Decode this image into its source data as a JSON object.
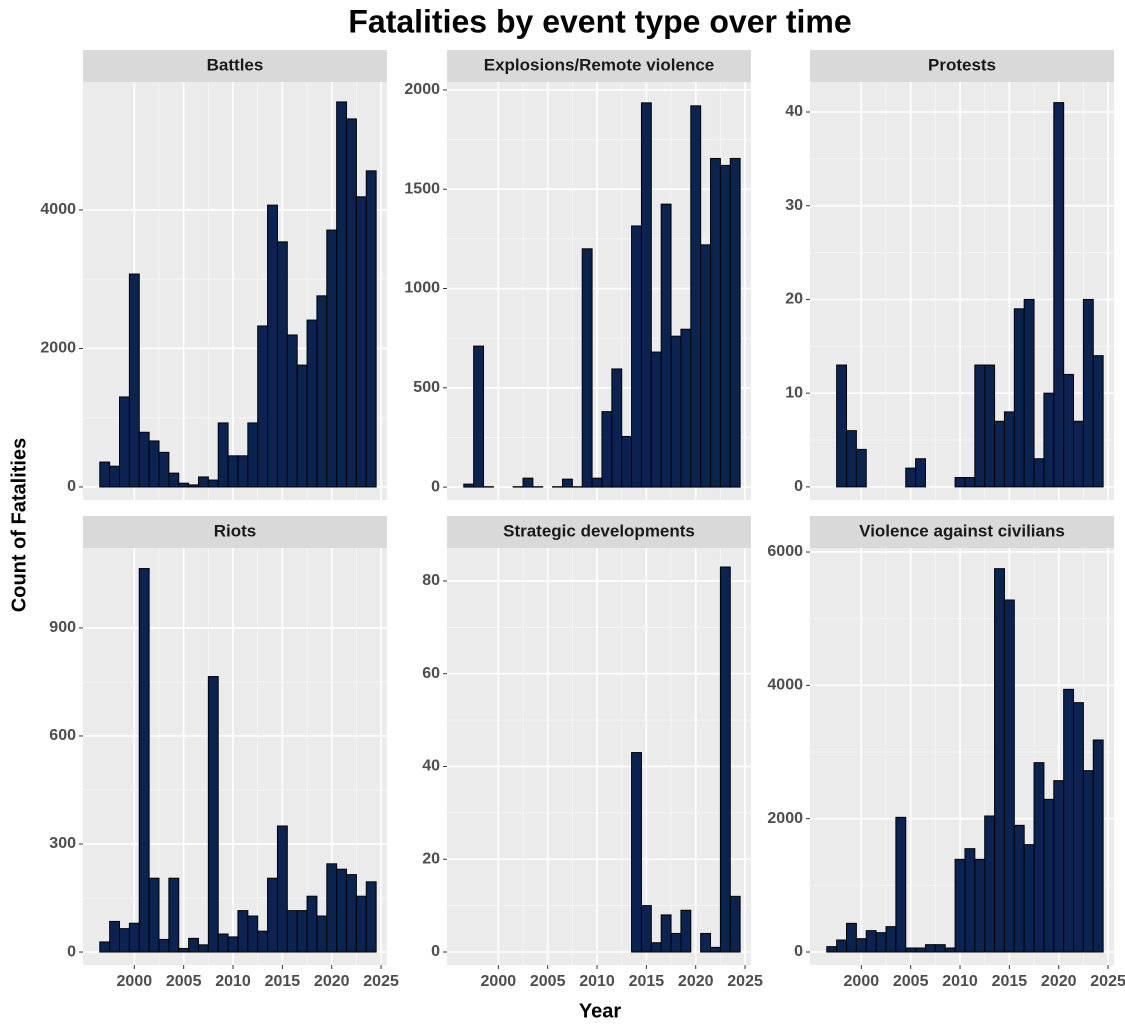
{
  "title": "Fatalities by event type over time",
  "x_label": "Year",
  "y_label": "Count of Fatalities",
  "chart_data": [
    {
      "type": "bar",
      "title": "Battles",
      "color": "#0b2350",
      "x": [
        1997,
        1998,
        1999,
        2000,
        2001,
        2002,
        2003,
        2004,
        2005,
        2006,
        2007,
        2008,
        2009,
        2010,
        2011,
        2012,
        2013,
        2014,
        2015,
        2016,
        2017,
        2018,
        2019,
        2020,
        2021,
        2022,
        2023,
        2024
      ],
      "values": [
        360,
        300,
        1300,
        3075,
        790,
        665,
        500,
        200,
        55,
        30,
        145,
        100,
        925,
        450,
        450,
        925,
        2325,
        4070,
        3540,
        2195,
        1760,
        2410,
        2760,
        3710,
        5560,
        5315,
        4190,
        4565
      ],
      "xlim": [
        1994.8,
        2025.6
      ],
      "xticks": [
        2000,
        2005,
        2010,
        2015,
        2020,
        2025
      ],
      "ylim": [
        -188,
        5848
      ],
      "yticks": [
        0,
        2000,
        4000
      ],
      "grid": true
    },
    {
      "type": "bar",
      "title": "Explosions/Remote violence",
      "color": "#0b2350",
      "x": [
        1997,
        1998,
        1999,
        2000,
        2001,
        2002,
        2003,
        2004,
        2005,
        2006,
        2007,
        2008,
        2009,
        2010,
        2011,
        2012,
        2013,
        2014,
        2015,
        2016,
        2017,
        2018,
        2019,
        2020,
        2021,
        2022,
        2023,
        2024
      ],
      "values": [
        15,
        710,
        2,
        null,
        null,
        2,
        45,
        2,
        null,
        2,
        40,
        2,
        1200,
        45,
        380,
        595,
        255,
        1315,
        1935,
        680,
        1425,
        760,
        795,
        1920,
        1220,
        1655,
        1620,
        1655
      ],
      "xlim": [
        1994.8,
        2025.6
      ],
      "xticks": [
        2000,
        2005,
        2010,
        2015,
        2020,
        2025
      ],
      "ylim": [
        -65,
        2040
      ],
      "yticks": [
        0,
        500,
        1000,
        1500,
        2000
      ],
      "grid": true
    },
    {
      "type": "bar",
      "title": "Protests",
      "color": "#0b2350",
      "x": [
        1997,
        1998,
        1999,
        2000,
        2001,
        2002,
        2003,
        2004,
        2005,
        2006,
        2007,
        2008,
        2009,
        2010,
        2011,
        2012,
        2013,
        2014,
        2015,
        2016,
        2017,
        2018,
        2019,
        2020,
        2021,
        2022,
        2023,
        2024
      ],
      "values": [
        0,
        13,
        6,
        4,
        0,
        null,
        0,
        0,
        2,
        3,
        0,
        0,
        0,
        1,
        1,
        13,
        13,
        7,
        8,
        19,
        20,
        3,
        10,
        41,
        12,
        7,
        20,
        14
      ],
      "xlim": [
        1994.8,
        2025.6
      ],
      "xticks": [
        2000,
        2005,
        2010,
        2015,
        2020,
        2025
      ],
      "ylim": [
        -1.4,
        43.2
      ],
      "yticks": [
        0,
        10,
        20,
        30,
        40
      ],
      "grid": true
    },
    {
      "type": "bar",
      "title": "Riots",
      "color": "#0b2350",
      "x": [
        1997,
        1998,
        1999,
        2000,
        2001,
        2002,
        2003,
        2004,
        2005,
        2006,
        2007,
        2008,
        2009,
        2010,
        2011,
        2012,
        2013,
        2014,
        2015,
        2016,
        2017,
        2018,
        2019,
        2020,
        2021,
        2022,
        2023,
        2024
      ],
      "values": [
        28,
        85,
        65,
        80,
        1065,
        205,
        35,
        205,
        10,
        38,
        20,
        765,
        50,
        42,
        115,
        100,
        58,
        205,
        350,
        115,
        115,
        155,
        100,
        245,
        230,
        215,
        155,
        195
      ],
      "xlim": [
        1994.8,
        2025.6
      ],
      "xticks": [
        2000,
        2005,
        2010,
        2015,
        2020,
        2025
      ],
      "ylim": [
        -36,
        1122
      ],
      "yticks": [
        0,
        300,
        600,
        900
      ],
      "grid": true
    },
    {
      "type": "bar",
      "title": "Strategic developments",
      "color": "#0b2350",
      "x": [
        1997,
        1998,
        1999,
        2000,
        2001,
        2002,
        2003,
        2004,
        2005,
        2006,
        2007,
        2008,
        2009,
        2010,
        2011,
        2012,
        2013,
        2014,
        2015,
        2016,
        2017,
        2018,
        2019,
        2020,
        2021,
        2022,
        2023,
        2024
      ],
      "values": [
        0,
        0,
        0,
        0,
        null,
        null,
        0,
        0,
        null,
        null,
        0,
        0,
        0,
        0,
        0,
        0,
        0,
        43,
        10,
        2,
        8,
        4,
        9,
        0,
        4,
        1,
        83,
        12
      ],
      "xlim": [
        1994.8,
        2025.6
      ],
      "xticks": [
        2000,
        2005,
        2010,
        2015,
        2020,
        2025
      ],
      "ylim": [
        -2.8,
        87.1
      ],
      "yticks": [
        0,
        20,
        40,
        60,
        80
      ],
      "grid": true
    },
    {
      "type": "bar",
      "title": "Violence against civilians",
      "color": "#0b2350",
      "x": [
        1997,
        1998,
        1999,
        2000,
        2001,
        2002,
        2003,
        2004,
        2005,
        2006,
        2007,
        2008,
        2009,
        2010,
        2011,
        2012,
        2013,
        2014,
        2015,
        2016,
        2017,
        2018,
        2019,
        2020,
        2021,
        2022,
        2023,
        2024
      ],
      "values": [
        80,
        180,
        430,
        200,
        320,
        290,
        380,
        2020,
        60,
        60,
        110,
        110,
        60,
        1390,
        1550,
        1390,
        2040,
        5750,
        5280,
        1900,
        1610,
        2840,
        2290,
        2570,
        3940,
        3740,
        2720,
        3180
      ],
      "xlim": [
        1994.8,
        2025.6
      ],
      "xticks": [
        2000,
        2005,
        2010,
        2015,
        2020,
        2025
      ],
      "ylim": [
        -195,
        6060
      ],
      "yticks": [
        0,
        2000,
        4000,
        6000
      ],
      "grid": true
    }
  ]
}
